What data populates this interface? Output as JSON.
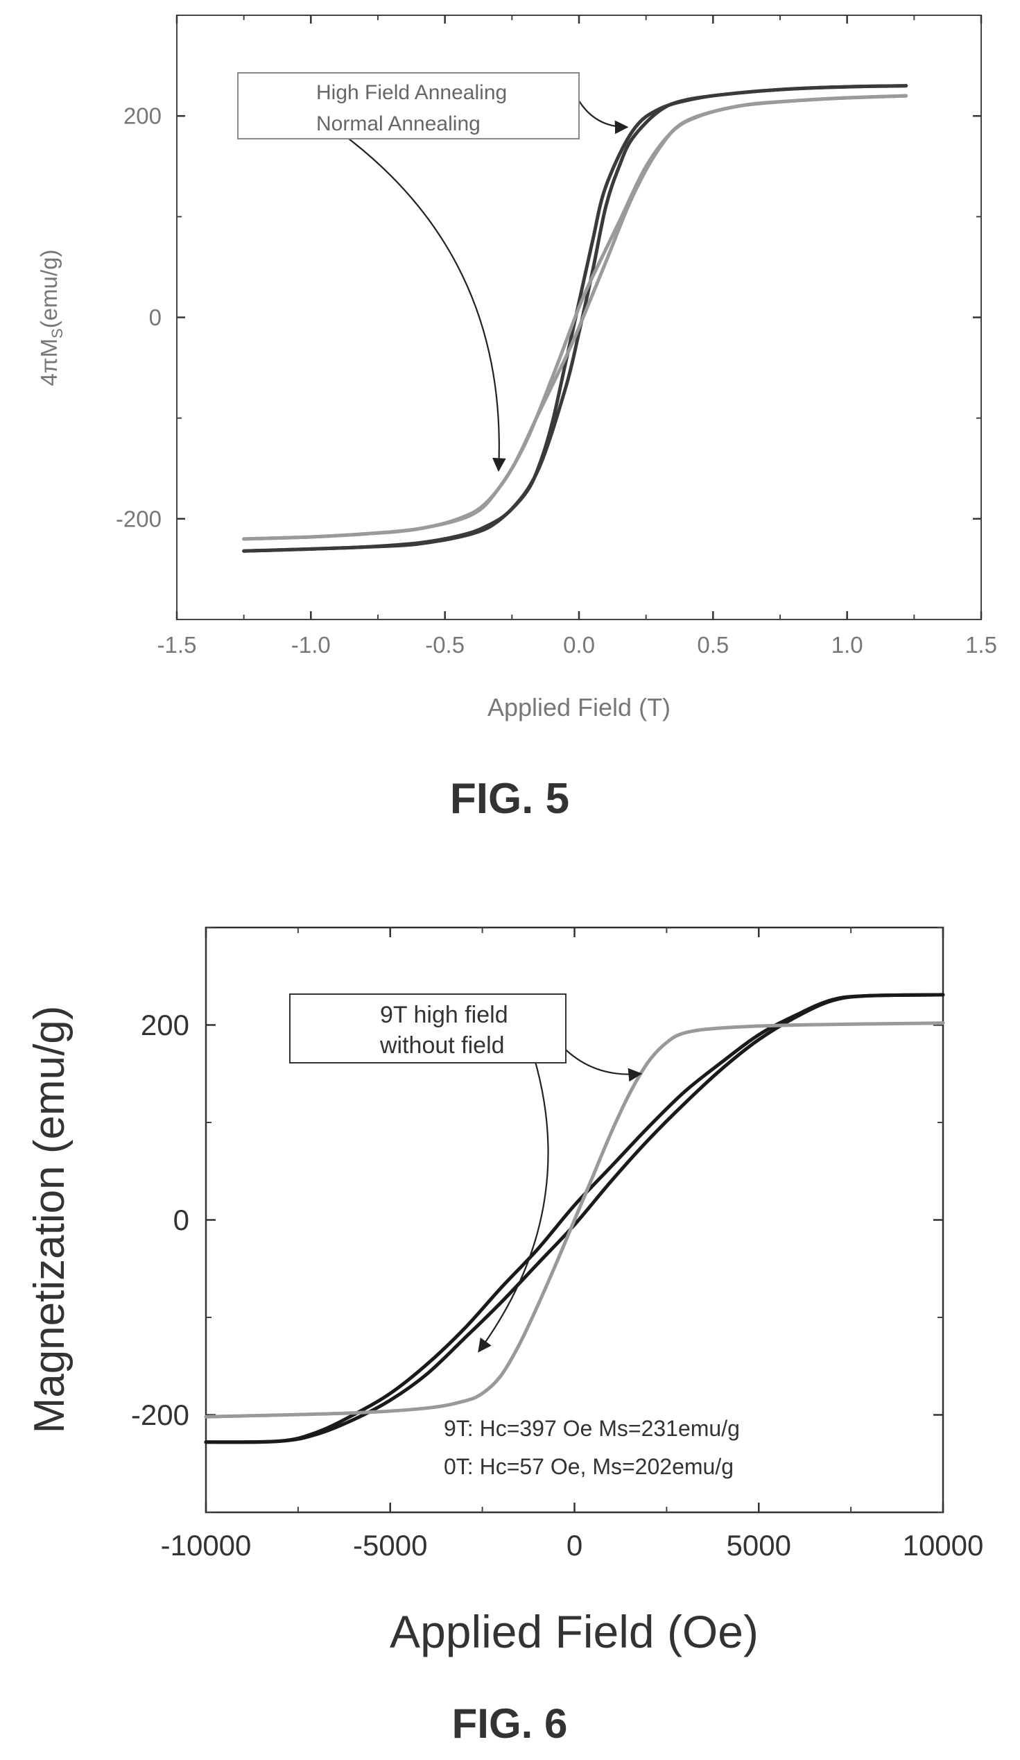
{
  "figures": [
    {
      "caption": "FIG. 5",
      "chart_data": {
        "type": "line",
        "xlabel": "Applied Field (T)",
        "ylabel_main": "4πM",
        "ylabel_sub": "S",
        "ylabel_unit": "(emu/g)",
        "xlim": [
          -1.5,
          1.5
        ],
        "ylim": [
          -300,
          300
        ],
        "xticks": [
          -1.5,
          -1.0,
          -0.5,
          0.0,
          0.5,
          1.0,
          1.5
        ],
        "xtick_labels": [
          "-1.5",
          "-1.0",
          "-0.5",
          "0.0",
          "0.5",
          "1.0",
          "1.5"
        ],
        "yticks": [
          -200,
          0,
          200
        ],
        "ytick_labels": [
          "-200",
          "0",
          "200"
        ],
        "legend": [
          "High Field Annealing",
          "Normal Annealing"
        ],
        "legend_position": "top-left",
        "grid": false,
        "series": [
          {
            "name": "High Field Annealing",
            "color": "#3a3a3a",
            "branches": [
              {
                "x": [
                  -1.25,
                  -1.0,
                  -0.8,
                  -0.6,
                  -0.45,
                  -0.35,
                  -0.25,
                  -0.15,
                  -0.05,
                  0.0,
                  0.05,
                  0.1,
                  0.15,
                  0.2,
                  0.3,
                  0.4,
                  0.6,
                  0.8,
                  1.0,
                  1.22
                ],
                "y": [
                  -232,
                  -230,
                  -228,
                  -224,
                  -217,
                  -208,
                  -190,
                  -150,
                  -70,
                  -15,
                  45,
                  110,
                  150,
                  178,
                  205,
                  216,
                  223,
                  227,
                  229,
                  230
                ]
              },
              {
                "x": [
                  -1.25,
                  -1.0,
                  -0.8,
                  -0.6,
                  -0.4,
                  -0.3,
                  -0.2,
                  -0.15,
                  -0.1,
                  -0.05,
                  0.0,
                  0.05,
                  0.1,
                  0.2,
                  0.3,
                  0.45,
                  0.6,
                  0.8,
                  1.0,
                  1.22
                ],
                "y": [
                  -232,
                  -230,
                  -228,
                  -225,
                  -215,
                  -202,
                  -175,
                  -148,
                  -105,
                  -45,
                  15,
                  75,
                  130,
                  185,
                  207,
                  218,
                  223,
                  227,
                  229,
                  230
                ]
              }
            ]
          },
          {
            "name": "Normal Annealing",
            "color": "#9a9a9a",
            "branches": [
              {
                "x": [
                  -1.25,
                  -1.0,
                  -0.8,
                  -0.6,
                  -0.45,
                  -0.35,
                  -0.25,
                  -0.15,
                  -0.05,
                  0.0,
                  0.1,
                  0.2,
                  0.3,
                  0.4,
                  0.6,
                  0.8,
                  1.0,
                  1.22
                ],
                "y": [
                  -220,
                  -218,
                  -215,
                  -210,
                  -200,
                  -185,
                  -150,
                  -95,
                  -40,
                  -10,
                  55,
                  120,
                  168,
                  195,
                  210,
                  215,
                  218,
                  220
                ]
              },
              {
                "x": [
                  -1.25,
                  -1.0,
                  -0.8,
                  -0.6,
                  -0.4,
                  -0.3,
                  -0.2,
                  -0.1,
                  0.0,
                  0.05,
                  0.15,
                  0.25,
                  0.35,
                  0.45,
                  0.6,
                  0.8,
                  1.0,
                  1.22
                ],
                "y": [
                  -220,
                  -218,
                  -215,
                  -210,
                  -196,
                  -170,
                  -125,
                  -60,
                  10,
                  40,
                  95,
                  150,
                  185,
                  200,
                  210,
                  215,
                  218,
                  220
                ]
              }
            ]
          }
        ],
        "annotation_arrows": [
          {
            "from_series": "Normal Annealing",
            "from": [
              -0.95,
              195
            ],
            "to": [
              -0.3,
              -152
            ],
            "bend": "left"
          },
          {
            "from_series": "High Field Annealing",
            "from": [
              0.0,
              215
            ],
            "to": [
              0.18,
              189
            ],
            "bend": "right"
          }
        ]
      }
    },
    {
      "caption": "FIG. 6",
      "chart_data": {
        "type": "line",
        "xlabel": "Applied Field (Oe)",
        "ylabel": "Magnetization (emu/g)",
        "xlim": [
          -10000,
          10000
        ],
        "ylim": [
          -300,
          300
        ],
        "xticks": [
          -10000,
          -5000,
          0,
          5000,
          10000
        ],
        "xtick_labels": [
          "-10000",
          "-5000",
          "0",
          "5000",
          "10000"
        ],
        "yticks": [
          -200,
          0,
          200
        ],
        "ytick_labels": [
          "-200",
          "0",
          "200"
        ],
        "legend": [
          "9T high field",
          "without field"
        ],
        "legend_position": "top-center",
        "grid": false,
        "annotations": [
          "9T: Hc=397 Oe Ms=231emu/g",
          "0T: Hc=57 Oe, Ms=202emu/g"
        ],
        "series": [
          {
            "name": "9T high field",
            "color": "#1a1a1a",
            "branches": [
              {
                "x": [
                  -10000,
                  -8000,
                  -7000,
                  -6000,
                  -5000,
                  -4000,
                  -3000,
                  -2000,
                  -1000,
                  0,
                  1000,
                  2000,
                  3000,
                  4000,
                  5000,
                  6000,
                  7000,
                  8000,
                  10000
                ],
                "y": [
                  -228,
                  -227,
                  -220,
                  -205,
                  -185,
                  -158,
                  -122,
                  -85,
                  -45,
                  -5,
                  40,
                  82,
                  120,
                  155,
                  185,
                  208,
                  225,
                  230,
                  231
                ]
              },
              {
                "x": [
                  -10000,
                  -8000,
                  -7000,
                  -6000,
                  -5000,
                  -4000,
                  -3000,
                  -2000,
                  -1000,
                  0,
                  1000,
                  2000,
                  3000,
                  4000,
                  5000,
                  6000,
                  7000,
                  8000,
                  10000
                ],
                "y": [
                  -228,
                  -227,
                  -218,
                  -200,
                  -178,
                  -148,
                  -112,
                  -70,
                  -30,
                  15,
                  55,
                  95,
                  132,
                  162,
                  190,
                  210,
                  226,
                  230,
                  231
                ]
              }
            ]
          },
          {
            "name": "without field",
            "color": "#999999",
            "branches": [
              {
                "x": [
                  -10000,
                  -6000,
                  -4000,
                  -3000,
                  -2500,
                  -2000,
                  -1500,
                  -1000,
                  -500,
                  0,
                  500,
                  1000,
                  1500,
                  2000,
                  2500,
                  3000,
                  4000,
                  6000,
                  10000
                ],
                "y": [
                  -202,
                  -198,
                  -193,
                  -186,
                  -178,
                  -160,
                  -128,
                  -88,
                  -45,
                  0,
                  45,
                  90,
                  130,
                  162,
                  182,
                  192,
                  197,
                  200,
                  202
                ]
              }
            ]
          }
        ],
        "annotation_arrows": [
          {
            "from_series": "9T high field",
            "from": [
              -1500,
              210
            ],
            "to": [
              -2600,
              -135
            ],
            "bend": "left"
          },
          {
            "from_series": "without field",
            "from": [
              -600,
              190
            ],
            "to": [
              1800,
              150
            ],
            "bend": "right"
          }
        ]
      }
    }
  ]
}
